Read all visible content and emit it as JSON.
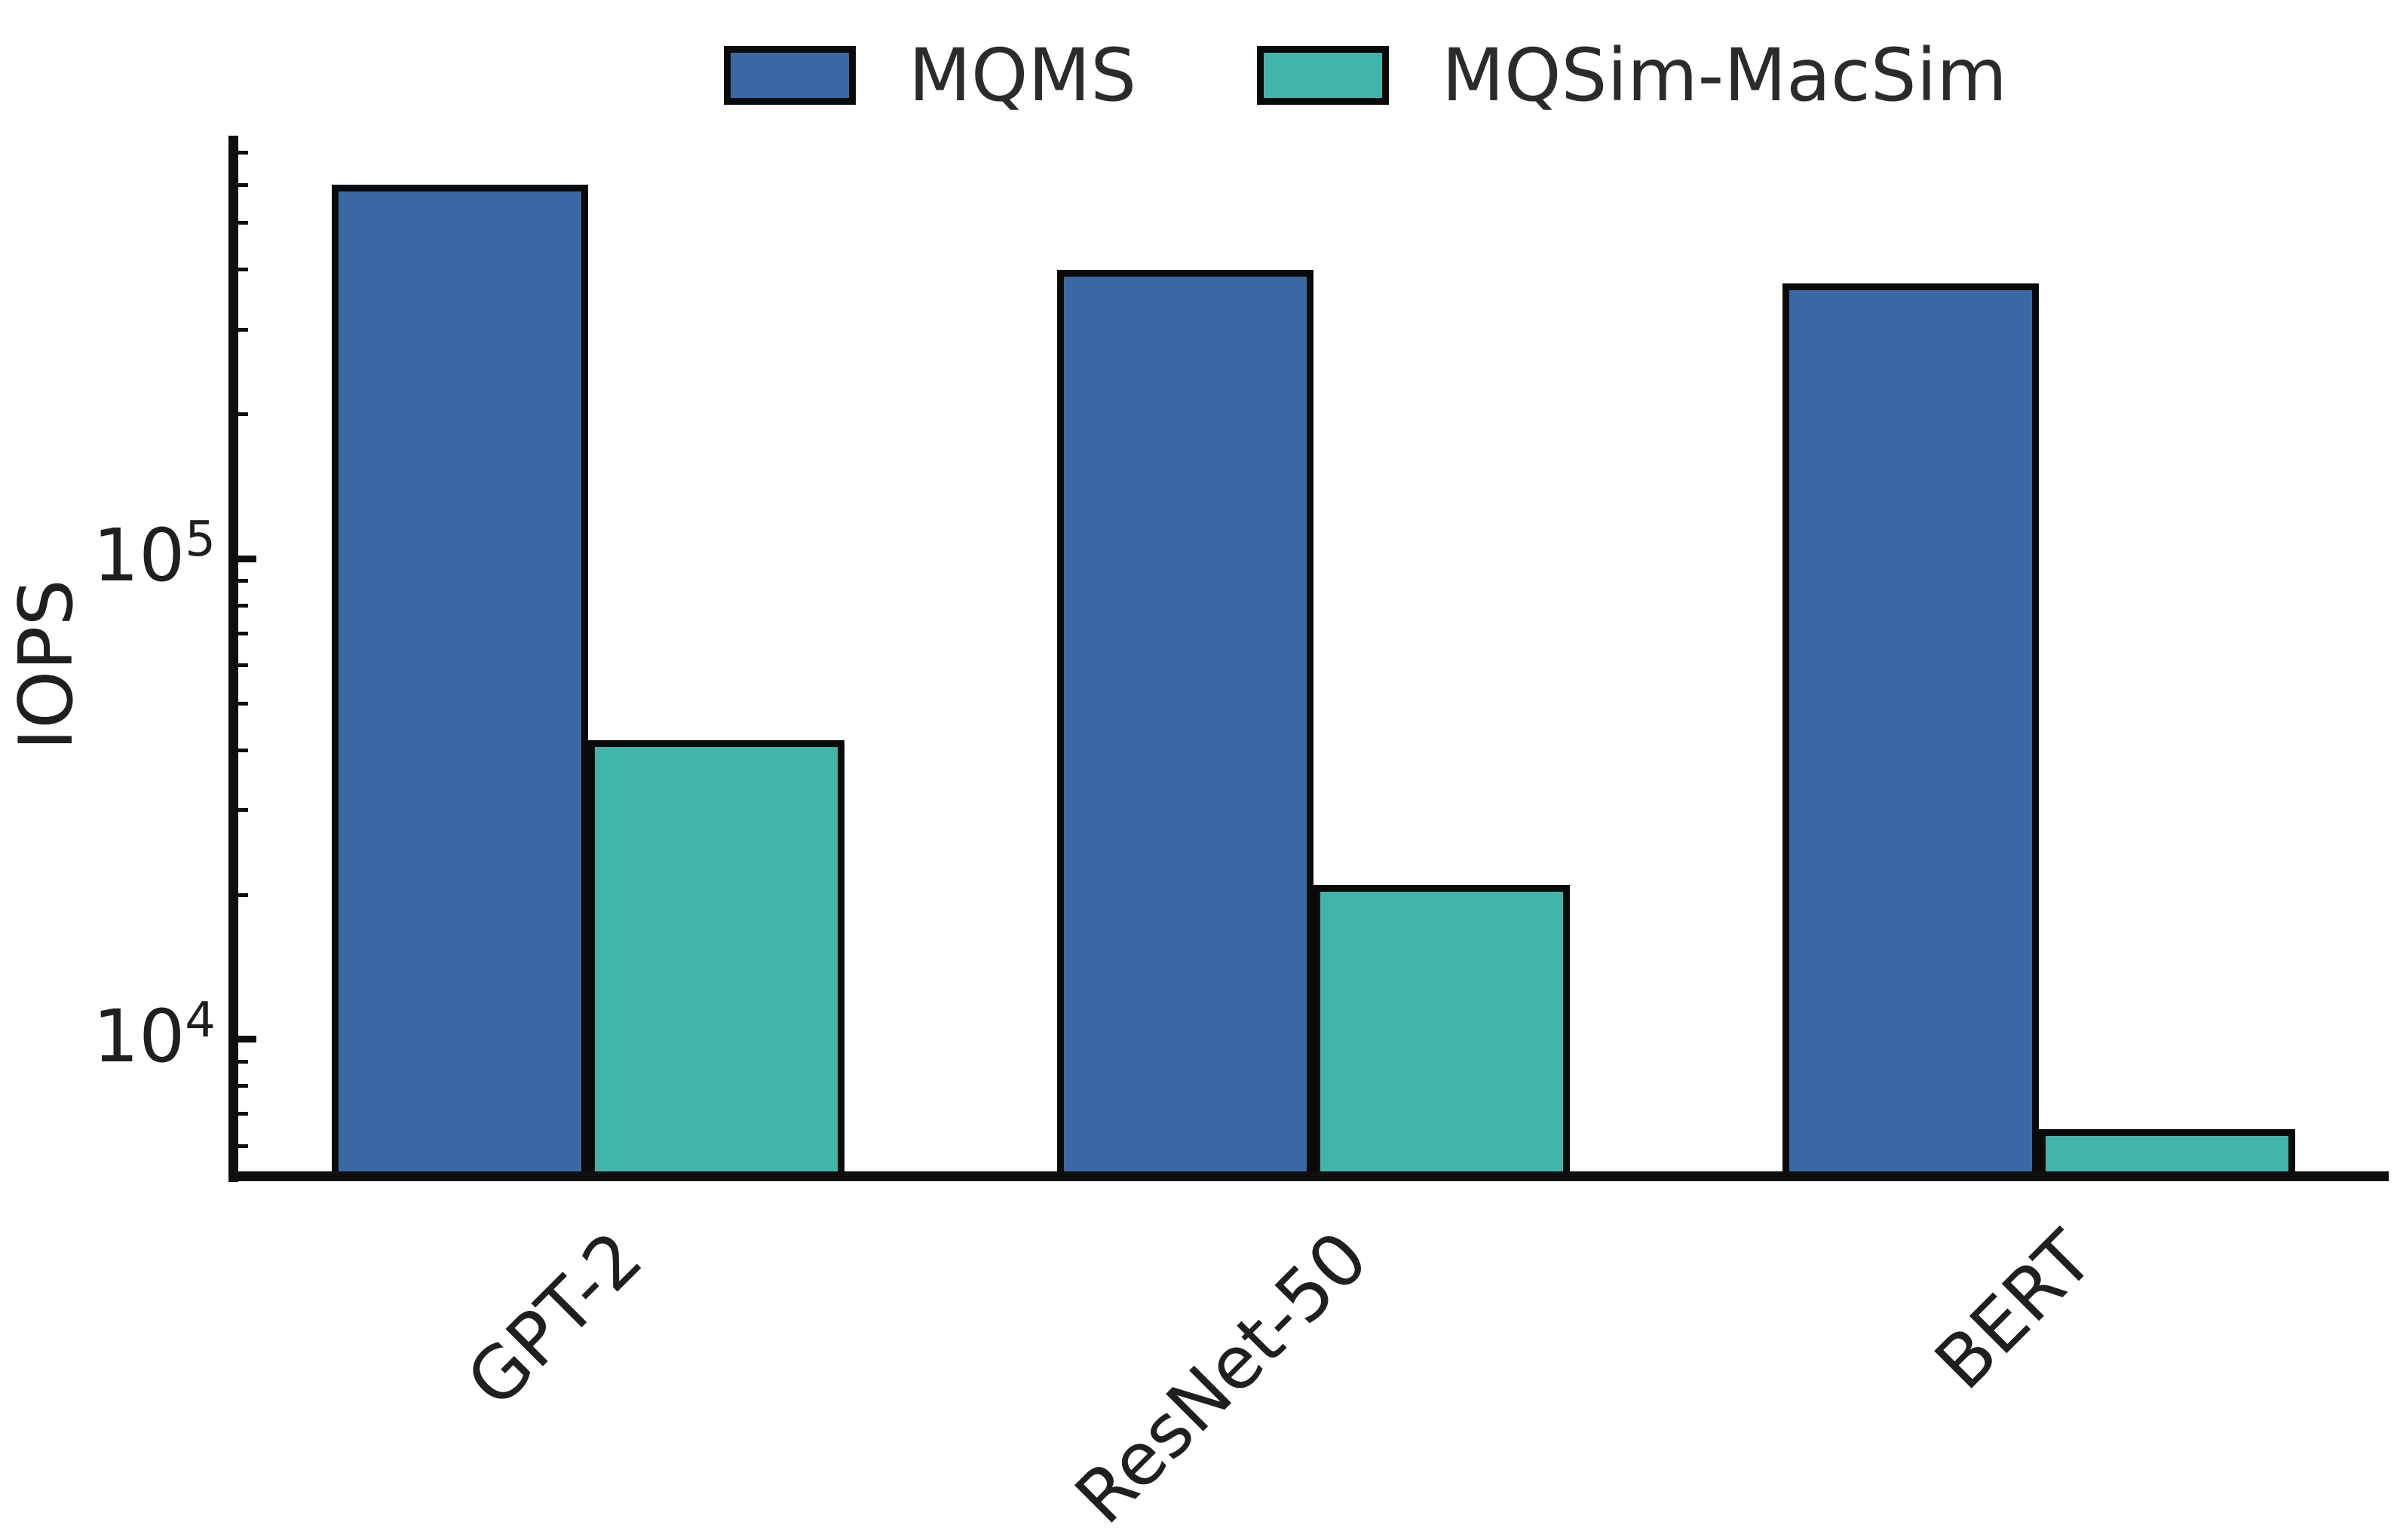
{
  "chart_data": {
    "type": "bar",
    "title": "",
    "categories": [
      "GPT-2",
      "ResNet-50",
      "BERT"
    ],
    "series": [
      {
        "name": "MQMS",
        "color": "#3A68A4",
        "values": [
          600000,
          400000,
          375000
        ]
      },
      {
        "name": "MQSim-MacSim",
        "color": "#41B5AB",
        "values": [
          42000,
          21000,
          6500
        ]
      }
    ],
    "xlabel": "",
    "ylabel": "IOPS",
    "yscale": "log",
    "ylim": [
      5200,
      760000
    ],
    "yticks": [
      {
        "value": 10000,
        "base": "10",
        "exp": "4"
      },
      {
        "value": 100000,
        "base": "10",
        "exp": "5"
      }
    ],
    "grid": false,
    "legend_position": "top",
    "bar_edge_color": "#0a0a0a",
    "x_tick_rotation_deg": 45
  }
}
